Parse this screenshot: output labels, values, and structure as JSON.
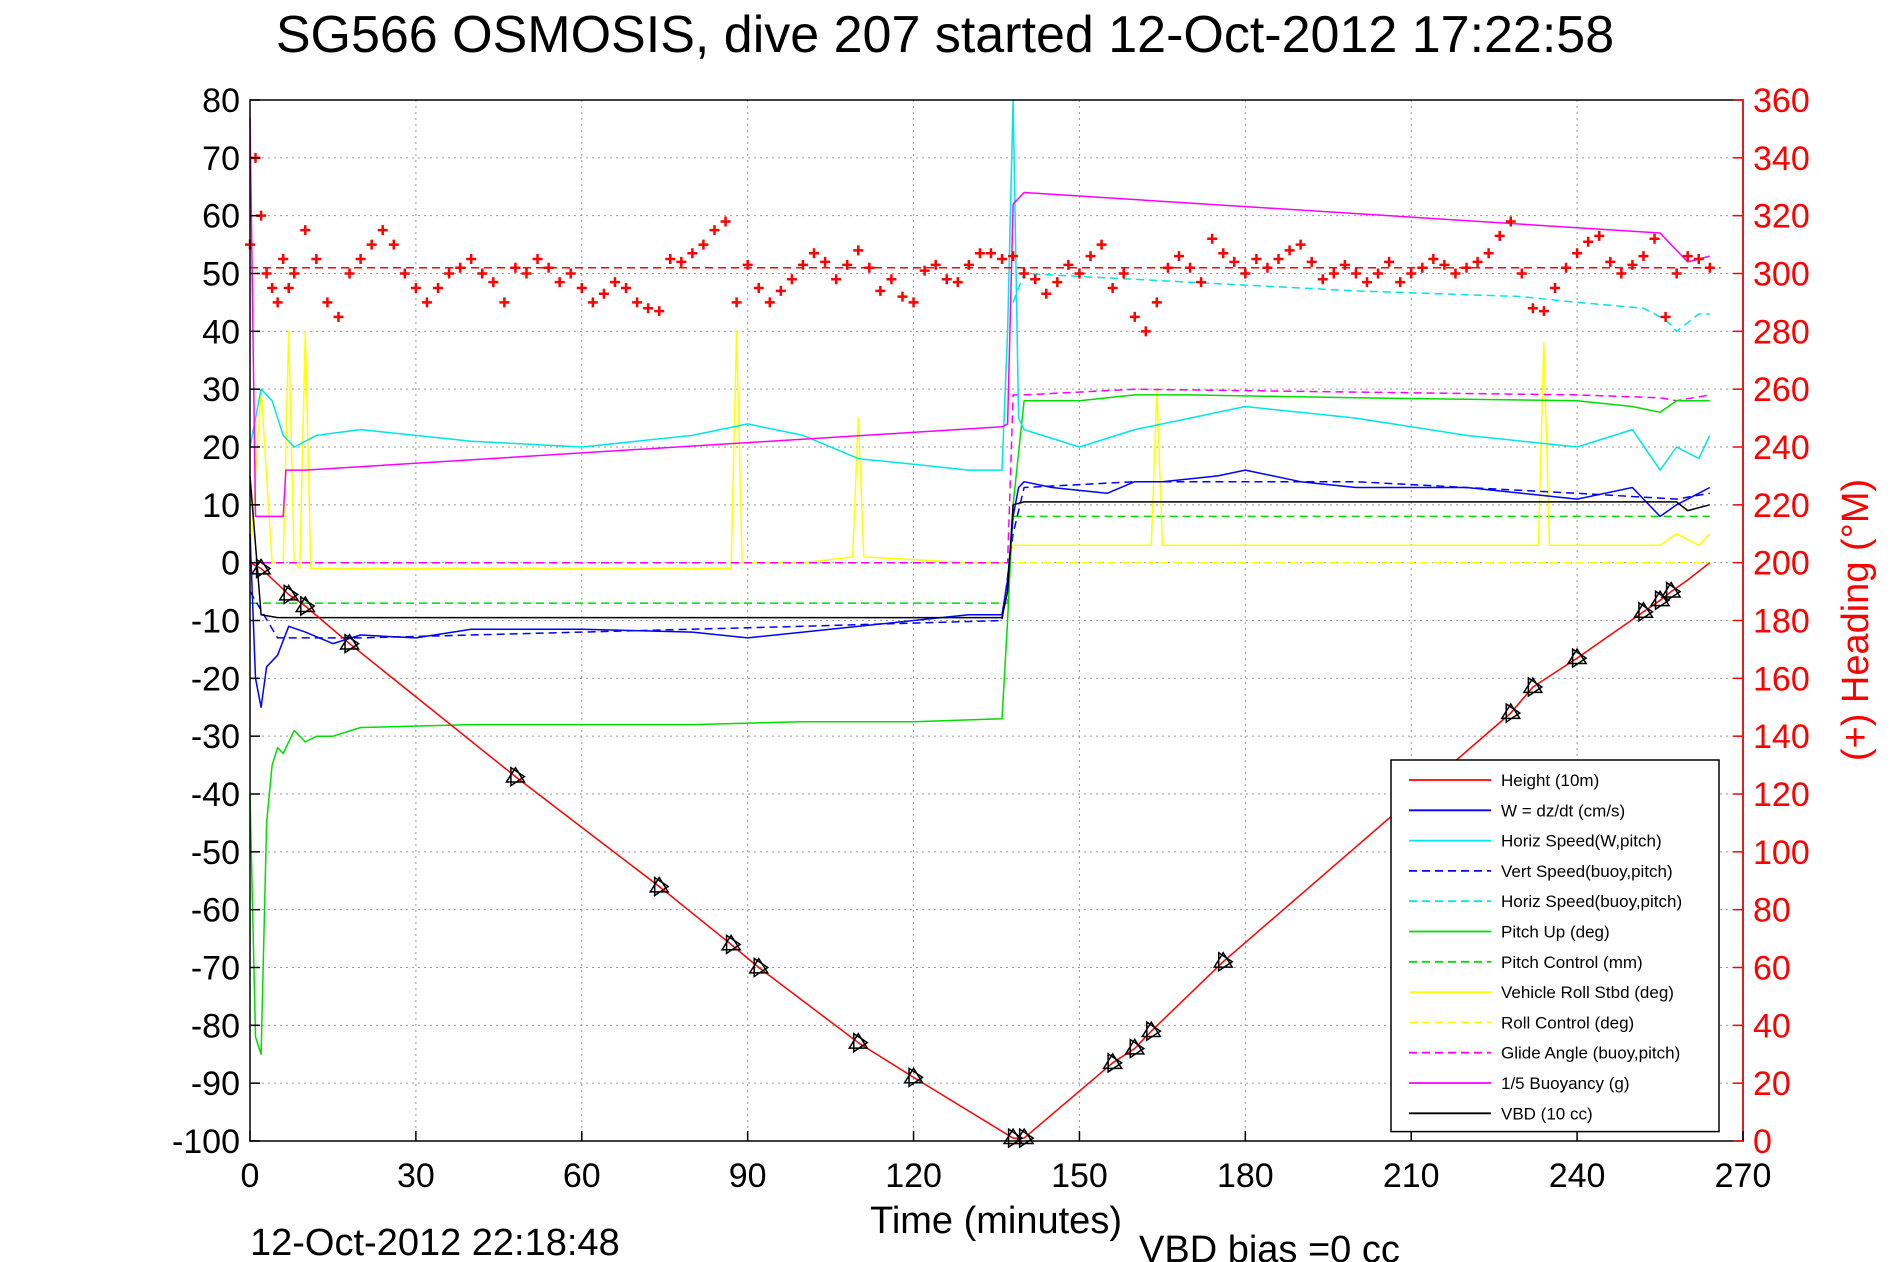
{
  "title": "SG566 OSMOSIS, dive 207 started 12-Oct-2012 17:22:58",
  "footer_left": "12-Oct-2012 22:18:48",
  "footer_right": "VBD bias =0 cc",
  "chart_data": {
    "type": "line",
    "xlabel": "Time (minutes)",
    "ylabel_right": "(+) Heading (°M)",
    "xlim": [
      0,
      270
    ],
    "ylim": [
      -100,
      80
    ],
    "ylim_right": [
      0,
      360
    ],
    "xticks": [
      0,
      30,
      60,
      90,
      120,
      150,
      180,
      210,
      240,
      270
    ],
    "yticks": [
      80,
      70,
      60,
      50,
      40,
      30,
      20,
      10,
      0,
      -10,
      -20,
      -30,
      -40,
      -50,
      -60,
      -70,
      -80,
      -90,
      -100
    ],
    "yticks_right": [
      360,
      340,
      320,
      300,
      280,
      260,
      240,
      220,
      200,
      180,
      160,
      140,
      120,
      100,
      80,
      60,
      40,
      20,
      0
    ],
    "grid": true,
    "legend_position": "bottom-right",
    "legend": [
      {
        "name": "Height (10m)",
        "color": "#ff0000",
        "dash": "solid"
      },
      {
        "name": "W = dz/dt (cm/s)",
        "color": "#0000ff",
        "dash": "solid"
      },
      {
        "name": "Horiz Speed(W,pitch)",
        "color": "#00e5e5",
        "dash": "solid"
      },
      {
        "name": "Vert Speed(buoy,pitch)",
        "color": "#0000ff",
        "dash": "dashed"
      },
      {
        "name": "Horiz Speed(buoy,pitch)",
        "color": "#00e5e5",
        "dash": "dashed"
      },
      {
        "name": "Pitch Up (deg)",
        "color": "#00dd00",
        "dash": "solid"
      },
      {
        "name": "Pitch Control (mm)",
        "color": "#00dd00",
        "dash": "dashed"
      },
      {
        "name": "Vehicle Roll Stbd (deg)",
        "color": "#ffff00",
        "dash": "solid"
      },
      {
        "name": "Roll Control (deg)",
        "color": "#ffff00",
        "dash": "dashed"
      },
      {
        "name": "Glide Angle (buoy,pitch)",
        "color": "#ff00ff",
        "dash": "dashed"
      },
      {
        "name": "1/5 Buoyancy (g)",
        "color": "#ff00ff",
        "dash": "solid"
      },
      {
        "name": "VBD (10 cc)",
        "color": "#000000",
        "dash": "solid"
      }
    ],
    "series": [
      {
        "key": "height",
        "color": "#ff0000",
        "dash": "solid",
        "x": [
          0,
          2,
          7,
          10,
          18,
          48,
          74,
          87,
          92,
          110,
          120,
          138,
          140,
          156,
          160,
          163,
          176,
          228,
          232,
          240,
          252,
          255,
          257,
          260,
          264
        ],
        "y": [
          0,
          -1,
          -5.5,
          -7.5,
          -14,
          -37,
          -56,
          -66,
          -70,
          -83,
          -89,
          -99.5,
          -99.5,
          -86.5,
          -84,
          -81,
          -69,
          -26,
          -21.5,
          -16.5,
          -8.5,
          -6.5,
          -5,
          -3,
          0
        ]
      },
      {
        "key": "w",
        "color": "#0000ff",
        "dash": "solid",
        "x": [
          0,
          1,
          2,
          3,
          5,
          7,
          10,
          15,
          20,
          30,
          40,
          60,
          80,
          90,
          100,
          120,
          130,
          136,
          137,
          138,
          139,
          140,
          145,
          150,
          155,
          160,
          165,
          175,
          180,
          190,
          200,
          210,
          220,
          230,
          240,
          245,
          250,
          255,
          258,
          262,
          264
        ],
        "y": [
          5,
          -20,
          -25,
          -18,
          -16,
          -11,
          -12,
          -14,
          -12.5,
          -13,
          -11.5,
          -11.5,
          -12,
          -13,
          -12,
          -10,
          -9,
          -9,
          -3,
          8,
          13,
          14,
          13,
          12.5,
          12,
          14,
          14,
          15,
          16,
          14,
          13,
          13,
          13,
          12,
          11,
          12,
          13,
          8,
          10,
          12,
          13
        ]
      },
      {
        "key": "hspeed_w",
        "color": "#00e5e5",
        "dash": "solid",
        "x": [
          0,
          2,
          4,
          6,
          8,
          12,
          20,
          30,
          40,
          60,
          80,
          90,
          100,
          110,
          120,
          130,
          136,
          137,
          138,
          139,
          140,
          150,
          160,
          170,
          180,
          200,
          220,
          240,
          250,
          255,
          258,
          262,
          264
        ],
        "y": [
          20,
          30,
          28,
          22,
          20,
          22,
          23,
          22,
          21,
          20,
          22,
          24,
          22,
          18,
          17,
          16,
          16,
          40,
          80,
          25,
          23,
          20,
          23,
          25,
          27,
          25,
          22,
          20,
          23,
          16,
          20,
          18,
          22
        ]
      },
      {
        "key": "vspeed_buoy",
        "color": "#0000ff",
        "dash": "dashed",
        "x": [
          0,
          5,
          20,
          60,
          100,
          136,
          138,
          140,
          160,
          200,
          240,
          258,
          264
        ],
        "y": [
          -5,
          -13,
          -13,
          -12,
          -11,
          -10,
          5,
          13,
          14,
          14,
          12,
          11,
          12
        ]
      },
      {
        "key": "hspeed_buoy",
        "color": "#00e5e5",
        "dash": "dashed",
        "x": [
          138,
          140,
          160,
          200,
          230,
          240,
          252,
          256,
          258,
          262,
          264
        ],
        "y": [
          45,
          50,
          49,
          47,
          46,
          45,
          44,
          42,
          40,
          43,
          43
        ]
      },
      {
        "key": "pitch_up",
        "color": "#00dd00",
        "dash": "solid",
        "x": [
          0,
          1,
          2,
          3,
          4,
          5,
          6,
          8,
          10,
          12,
          15,
          20,
          40,
          60,
          80,
          100,
          120,
          136,
          137,
          138,
          140,
          150,
          160,
          170,
          200,
          240,
          250,
          255,
          258,
          264
        ],
        "y": [
          -40,
          -82,
          -85,
          -45,
          -35,
          -32,
          -33,
          -29,
          -31,
          -30,
          -30,
          -28.5,
          -28,
          -28,
          -28,
          -27.5,
          -27.5,
          -27,
          -10,
          10,
          28,
          28,
          29,
          29,
          28.5,
          28,
          27,
          26,
          28,
          28
        ]
      },
      {
        "key": "pitch_control",
        "color": "#00dd00",
        "dash": "dashed",
        "x": [
          0,
          5,
          137,
          138,
          264
        ],
        "y": [
          -7,
          -7,
          -7,
          8,
          8
        ]
      },
      {
        "key": "roll",
        "color": "#ffff00",
        "dash": "solid",
        "x": [
          0,
          2,
          4,
          6,
          7,
          8,
          9,
          10,
          11,
          20,
          40,
          60,
          80,
          87,
          88,
          89,
          100,
          109,
          110,
          111,
          130,
          137,
          138,
          140,
          160,
          163,
          164,
          165,
          200,
          230,
          233,
          234,
          235,
          250,
          255,
          258,
          262,
          264
        ],
        "y": [
          0,
          30,
          0,
          0,
          40,
          0,
          -1,
          40,
          -1,
          -1,
          -1,
          -1,
          -1,
          -1,
          40,
          0,
          0,
          1,
          25,
          1,
          0,
          0,
          3,
          3,
          3,
          3,
          30,
          3,
          3,
          3,
          3,
          38,
          3,
          3,
          3,
          5,
          3,
          5
        ]
      },
      {
        "key": "roll_control",
        "color": "#ffff00",
        "dash": "dashed",
        "x": [
          0,
          137,
          138,
          264
        ],
        "y": [
          0,
          0,
          0,
          0
        ]
      },
      {
        "key": "glide_angle",
        "color": "#ff00ff",
        "dash": "dashed",
        "x": [
          0,
          137,
          138,
          140,
          160,
          200,
          240,
          255,
          258,
          264
        ],
        "y": [
          0,
          0,
          29,
          29,
          30,
          29.5,
          29,
          28.5,
          28,
          29
        ]
      },
      {
        "key": "buoyancy",
        "color": "#ff00ff",
        "dash": "solid",
        "x": [
          0,
          1,
          5,
          6,
          6.5,
          10,
          136,
          137,
          138,
          140,
          255,
          257,
          260,
          264
        ],
        "y": [
          77,
          8,
          8,
          8,
          16,
          16,
          23.5,
          24,
          62,
          64,
          57,
          55,
          52,
          53
        ]
      },
      {
        "key": "vbd",
        "color": "#000000",
        "dash": "solid",
        "x": [
          0,
          2,
          5,
          136,
          137,
          138,
          140,
          258,
          260,
          264
        ],
        "y": [
          15,
          -9,
          -9.5,
          -9.5,
          -5,
          10,
          10.5,
          10.5,
          9,
          10
        ]
      }
    ],
    "heading_mean_deg": 302,
    "heading_markers": {
      "x": [
        0,
        1,
        2,
        3,
        4,
        5,
        6,
        7,
        8,
        10,
        12,
        14,
        16,
        18,
        20,
        22,
        24,
        26,
        28,
        30,
        32,
        34,
        36,
        38,
        40,
        42,
        44,
        46,
        48,
        50,
        52,
        54,
        56,
        58,
        60,
        62,
        64,
        66,
        68,
        70,
        72,
        74,
        76,
        78,
        80,
        82,
        84,
        86,
        88,
        90,
        92,
        94,
        96,
        98,
        100,
        102,
        104,
        106,
        108,
        110,
        112,
        114,
        116,
        118,
        120,
        122,
        124,
        126,
        128,
        130,
        132,
        134,
        136,
        138,
        140,
        142,
        144,
        146,
        148,
        150,
        152,
        154,
        156,
        158,
        160,
        162,
        164,
        166,
        168,
        170,
        172,
        174,
        176,
        178,
        180,
        182,
        184,
        186,
        188,
        190,
        192,
        194,
        196,
        198,
        200,
        202,
        204,
        206,
        208,
        210,
        212,
        214,
        216,
        218,
        220,
        222,
        224,
        226,
        228,
        230,
        232,
        234,
        236,
        238,
        240,
        242,
        244,
        246,
        248,
        250,
        252,
        254,
        256,
        258,
        260,
        262,
        264
      ],
      "y_deg": [
        310,
        340,
        320,
        300,
        295,
        290,
        305,
        295,
        300,
        315,
        305,
        290,
        285,
        300,
        305,
        310,
        315,
        310,
        300,
        295,
        290,
        295,
        300,
        302,
        305,
        300,
        297,
        290,
        302,
        300,
        305,
        302,
        297,
        300,
        295,
        290,
        293,
        297,
        295,
        290,
        288,
        287,
        305,
        304,
        307,
        310,
        315,
        318,
        290,
        303,
        295,
        290,
        294,
        298,
        303,
        307,
        304,
        298,
        303,
        308,
        302,
        294,
        298,
        292,
        290,
        301,
        303,
        298,
        297,
        303,
        307,
        307,
        305,
        306,
        300,
        298,
        293,
        297,
        303,
        300,
        306,
        310,
        295,
        300,
        285,
        280,
        290,
        302,
        306,
        302,
        297,
        312,
        307,
        304,
        300,
        305,
        302,
        305,
        308,
        310,
        304,
        298,
        300,
        303,
        300,
        297,
        300,
        304,
        297,
        300,
        302,
        305,
        303,
        300,
        302,
        304,
        307,
        313,
        318,
        300,
        288,
        287,
        295,
        302,
        307,
        311,
        313,
        304,
        300,
        303,
        306,
        312,
        285,
        300,
        306,
        305,
        302
      ]
    },
    "point_markers": {
      "x": [
        2,
        7,
        10,
        18,
        48,
        74,
        87,
        92,
        110,
        120,
        138,
        140,
        156,
        160,
        163,
        176,
        228,
        232,
        240,
        252,
        255,
        257
      ],
      "y": [
        -1,
        -5.5,
        -7.5,
        -14,
        -37,
        -56,
        -66,
        -70,
        -83,
        -89,
        -99.5,
        -99.5,
        -86.5,
        -84,
        -81,
        -69,
        -26,
        -21.5,
        -16.5,
        -8.5,
        -6.5,
        -5
      ]
    }
  }
}
